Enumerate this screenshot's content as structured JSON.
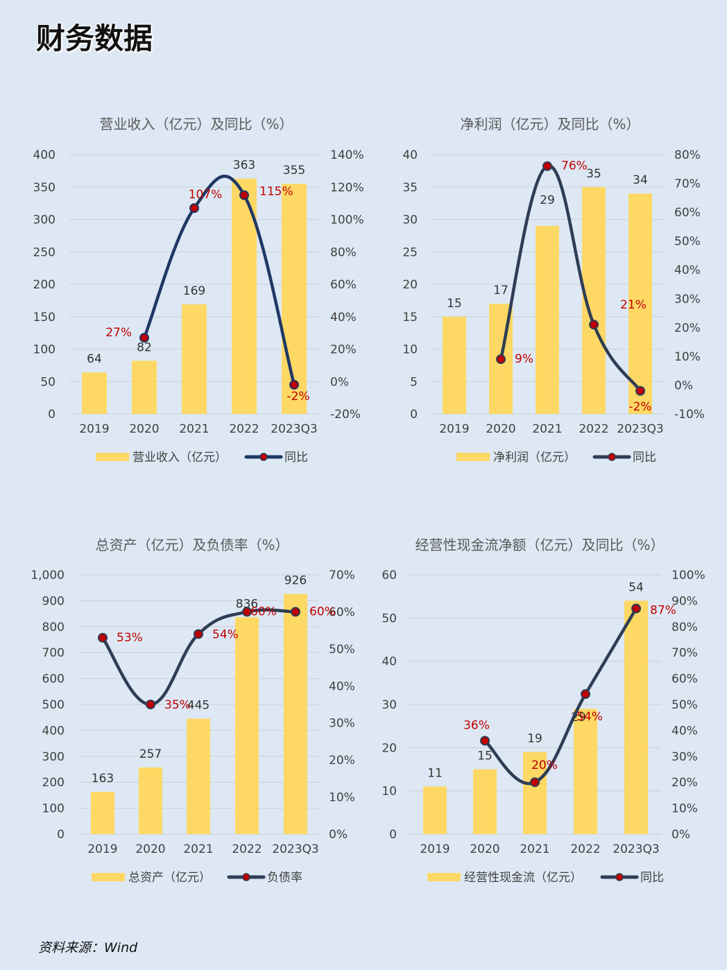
{
  "page": {
    "title": "财务数据",
    "source": "资料来源：Wind"
  },
  "colors": {
    "bar": "#fdd865",
    "line": "#2e3d55",
    "line_revenue": "#1f3864",
    "marker_fill": "#c00000",
    "label_red": "#c00000",
    "grid": "#cfd4da",
    "axis_text": "#404040",
    "title_text": "#595959",
    "background": "#dde8f4"
  },
  "chart_data": [
    {
      "type": "bar",
      "title": "营业收入（亿元）及同比（%）",
      "categories": [
        "2019",
        "2020",
        "2021",
        "2022",
        "2023Q3"
      ],
      "y_ticks": [
        "0",
        "50",
        "100",
        "150",
        "200",
        "250",
        "300",
        "350",
        "400"
      ],
      "y2_ticks": [
        "-20%",
        "0%",
        "20%",
        "40%",
        "60%",
        "80%",
        "100%",
        "120%",
        "140%"
      ],
      "ylim": [
        0,
        400
      ],
      "y2lim": [
        -20,
        140
      ],
      "series": [
        {
          "name": "营业收入（亿元）",
          "type": "bar",
          "values": [
            64,
            82,
            169,
            363,
            355
          ],
          "labels": [
            "64",
            "82",
            "169",
            "363",
            "355"
          ]
        },
        {
          "name": "同比",
          "type": "line",
          "values": [
            null,
            27,
            107,
            115,
            -2
          ],
          "labels": [
            null,
            "27%",
            "107%",
            "115%",
            "-2%"
          ]
        }
      ],
      "legend_position": "bottom"
    },
    {
      "type": "bar",
      "title": "净利润（亿元）及同比（%）",
      "categories": [
        "2019",
        "2020",
        "2021",
        "2022",
        "2023Q3"
      ],
      "y_ticks": [
        "0",
        "5",
        "10",
        "15",
        "20",
        "25",
        "30",
        "35",
        "40"
      ],
      "y2_ticks": [
        "-10%",
        "0%",
        "10%",
        "20%",
        "30%",
        "40%",
        "50%",
        "60%",
        "70%",
        "80%"
      ],
      "ylim": [
        0,
        40
      ],
      "y2lim": [
        -10,
        80
      ],
      "series": [
        {
          "name": "净利润（亿元）",
          "type": "bar",
          "values": [
            15,
            17,
            29,
            35,
            34
          ],
          "labels": [
            "15",
            "17",
            "29",
            "35",
            "34"
          ]
        },
        {
          "name": "同比",
          "type": "line",
          "values": [
            null,
            9,
            76,
            21,
            -2
          ],
          "labels": [
            null,
            "9%",
            "76%",
            "21%",
            "-2%"
          ]
        }
      ],
      "legend_position": "bottom"
    },
    {
      "type": "bar",
      "title": "总资产（亿元）及负债率（%）",
      "categories": [
        "2019",
        "2020",
        "2021",
        "2022",
        "2023Q3"
      ],
      "y_ticks": [
        "0",
        "100",
        "200",
        "300",
        "400",
        "500",
        "600",
        "700",
        "800",
        "900",
        "1,000"
      ],
      "y2_ticks": [
        "0%",
        "10%",
        "20%",
        "30%",
        "40%",
        "50%",
        "60%",
        "70%"
      ],
      "ylim": [
        0,
        1000
      ],
      "y2lim": [
        0,
        70
      ],
      "series": [
        {
          "name": "总资产（亿元）",
          "type": "bar",
          "values": [
            163,
            257,
            445,
            836,
            926
          ],
          "labels": [
            "163",
            "257",
            "445",
            "836",
            "926"
          ]
        },
        {
          "name": "负债率",
          "type": "line",
          "values": [
            53,
            35,
            54,
            60,
            60
          ],
          "labels": [
            "53%",
            "35%",
            "54%",
            "60%",
            "60%"
          ]
        }
      ],
      "legend_position": "bottom"
    },
    {
      "type": "bar",
      "title": "经营性现金流净额（亿元）及同比（%）",
      "categories": [
        "2019",
        "2020",
        "2021",
        "2022",
        "2023Q3"
      ],
      "y_ticks": [
        "0",
        "10",
        "20",
        "30",
        "40",
        "50",
        "60"
      ],
      "y2_ticks": [
        "0%",
        "10%",
        "20%",
        "30%",
        "40%",
        "50%",
        "60%",
        "70%",
        "80%",
        "90%",
        "100%"
      ],
      "ylim": [
        0,
        60
      ],
      "y2lim": [
        0,
        100
      ],
      "series": [
        {
          "name": "经营性现金流（亿元）",
          "type": "bar",
          "values": [
            11,
            15,
            19,
            29,
            54
          ],
          "labels": [
            "11",
            "15",
            "19",
            "29",
            "54"
          ]
        },
        {
          "name": "同比",
          "type": "line",
          "values": [
            null,
            36,
            20,
            54,
            87
          ],
          "labels": [
            null,
            "36%",
            "20%",
            "54%",
            "87%"
          ]
        }
      ],
      "legend_position": "bottom"
    }
  ]
}
